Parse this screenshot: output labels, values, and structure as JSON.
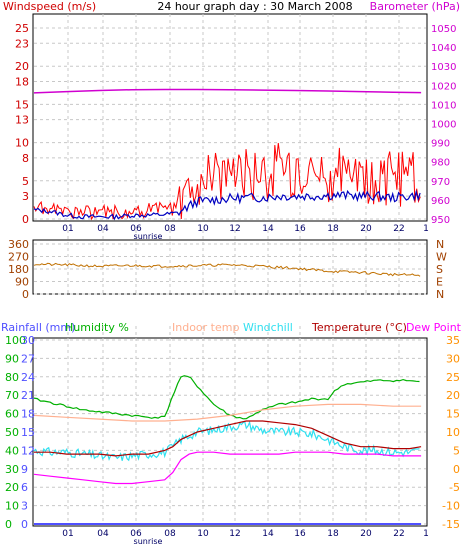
{
  "header": {
    "windspeed_label": "Windspeed (m/s)",
    "title": "24 hour graph day : 30 March 2008",
    "barometer_label": "Barometer (hPa)"
  },
  "mid": {
    "compass": [
      "N",
      "W",
      "S",
      "E",
      "N"
    ]
  },
  "legend": {
    "rainfall": "Rainfall (mm)",
    "humidity": "Humidity %",
    "indoor": "Indoor temp",
    "windchill": "Windchill",
    "temperature": "Temperature (°C)",
    "dewpoint": "Dew Point"
  },
  "colors": {
    "windspeed_axis": "#d00000",
    "windspeed": "#ff0000",
    "windavg": "#0000c0",
    "barometer": "#d000d0",
    "direction": "#c07000",
    "direction_axis": "#a04000",
    "rainfall": "#5050ff",
    "humidity": "#00b000",
    "indoor": "#ffb090",
    "windchill": "#30e0f0",
    "temperature": "#b00000",
    "dewpoint": "#ff00ff",
    "temp_axis": "#ff9000",
    "grid": "#c8c8c8"
  },
  "chart_data": [
    {
      "type": "line",
      "title": "24 hour graph day : 30 March 2008",
      "x_ticks": [
        "01",
        "04",
        "06",
        "08",
        "10",
        "12",
        "14",
        "16",
        "18",
        "20",
        "22",
        "1"
      ],
      "x_marker": "sunrise",
      "y_left": {
        "label": "Windspeed (m/s)",
        "ticks": [
          0,
          3,
          5,
          8,
          10,
          13,
          15,
          18,
          20,
          23,
          25
        ],
        "range": [
          0,
          25
        ]
      },
      "y_right": {
        "label": "Barometer (hPa)",
        "ticks": [
          950,
          960,
          970,
          980,
          990,
          1000,
          1010,
          1020,
          1030,
          1040,
          1050
        ],
        "range": [
          950,
          1050
        ]
      },
      "series": [
        {
          "name": "Windspeed (m/s)",
          "axis": "left",
          "x": [
            0,
            1,
            2,
            3,
            4,
            5,
            6,
            7,
            8,
            8.8,
            9,
            9.5,
            10,
            11,
            12,
            13,
            14,
            15,
            16,
            17,
            18,
            19,
            20,
            21,
            22,
            23,
            23.7
          ],
          "values": [
            1.5,
            1.2,
            0.8,
            0.6,
            0.6,
            0.7,
            0.8,
            0.9,
            1.0,
            1.3,
            2.5,
            3.5,
            4.5,
            4.6,
            5.2,
            5.0,
            5.0,
            5.5,
            5.5,
            5.0,
            5.0,
            5.2,
            5.0,
            4.5,
            4.5,
            4.3,
            4.3
          ]
        },
        {
          "name": "Wind average",
          "axis": "left",
          "x": [
            0,
            1,
            2,
            3,
            4,
            5,
            6,
            7,
            8,
            8.8,
            9.5,
            10,
            11,
            12,
            13,
            14,
            15,
            16,
            17,
            18,
            19,
            20,
            21,
            22,
            23,
            23.7
          ],
          "values": [
            1.2,
            1.0,
            0.5,
            0.3,
            0.3,
            0.3,
            0.5,
            0.5,
            0.6,
            0.8,
            1.7,
            2.3,
            2.5,
            2.7,
            2.8,
            2.8,
            3.0,
            3.0,
            3.0,
            3.1,
            3.1,
            3.0,
            3.0,
            2.8,
            3.0,
            3.2
          ]
        },
        {
          "name": "Barometer (hPa)",
          "axis": "right",
          "x": [
            0,
            2,
            4,
            6,
            8,
            10,
            12,
            14,
            16,
            18,
            20,
            22,
            23.7
          ],
          "values": [
            1016.0,
            1016.7,
            1017.3,
            1017.7,
            1017.8,
            1017.8,
            1017.7,
            1017.5,
            1017.3,
            1017.0,
            1016.7,
            1016.4,
            1016.2
          ]
        }
      ]
    },
    {
      "type": "line",
      "y_left": {
        "ticks": [
          0,
          90,
          180,
          270,
          360
        ],
        "range": [
          0,
          360
        ]
      },
      "y_right": {
        "ticks": [
          "N",
          "W",
          "S",
          "E",
          "N"
        ]
      },
      "series": [
        {
          "name": "Wind direction",
          "x": [
            0,
            2,
            4,
            6,
            8,
            10,
            12,
            14,
            16,
            18,
            20,
            22,
            23.7
          ],
          "values": [
            215,
            210,
            200,
            205,
            200,
            205,
            210,
            200,
            185,
            165,
            155,
            140,
            135
          ]
        }
      ]
    },
    {
      "type": "line",
      "legend": [
        "Rainfall (mm)",
        "Humidity %",
        "Indoor temp",
        "Windchill",
        "Temperature (°C)",
        "Dew Point"
      ],
      "y_rainfall": {
        "label": "Rainfall (mm)",
        "ticks": [
          0,
          3,
          6,
          9,
          12,
          15,
          18,
          21,
          24,
          27,
          30
        ],
        "range": [
          0,
          30
        ]
      },
      "y_humidity": {
        "label": "Humidity %",
        "ticks": [
          0,
          10,
          20,
          30,
          40,
          50,
          60,
          70,
          80,
          90,
          100
        ],
        "range": [
          0,
          100
        ]
      },
      "y_temperature": {
        "label": "Temperature (°C)",
        "ticks": [
          -15,
          -10,
          -5,
          0,
          5,
          10,
          15,
          20,
          25,
          30,
          35
        ],
        "range": [
          -15,
          35
        ]
      },
      "series": [
        {
          "name": "Humidity %",
          "axis": "humidity",
          "x": [
            0,
            1,
            2,
            3,
            4,
            5,
            6,
            7,
            8,
            8.5,
            9,
            9.5,
            10,
            10.5,
            11,
            12,
            13,
            13.5,
            14,
            15,
            16,
            17,
            18,
            18.5,
            19,
            20,
            21,
            22,
            23,
            23.7
          ],
          "values": [
            68,
            66,
            64,
            62,
            61,
            60,
            59,
            58,
            58,
            70,
            80,
            80,
            75,
            70,
            65,
            59,
            57,
            60,
            62,
            65,
            66,
            68,
            68,
            73,
            76,
            77,
            78,
            78,
            78,
            77
          ]
        },
        {
          "name": "Indoor temp",
          "axis": "temperature",
          "x": [
            0,
            2,
            4,
            6,
            8,
            10,
            12,
            14,
            16,
            18,
            20,
            22,
            23.7
          ],
          "values": [
            14.5,
            14.0,
            13.5,
            13.0,
            13.0,
            13.5,
            14.5,
            16.0,
            17.0,
            17.5,
            17.5,
            17.0,
            17.0
          ]
        },
        {
          "name": "Windchill",
          "axis": "temperature",
          "x": [
            0,
            1,
            2,
            3,
            4,
            5,
            6,
            7,
            8,
            8.5,
            9,
            9.5,
            10,
            11,
            12,
            13,
            14,
            15,
            16,
            17,
            18,
            19,
            20,
            21,
            22,
            23,
            23.7
          ],
          "values": [
            5.0,
            4.5,
            4.5,
            4.0,
            3.5,
            3.0,
            3.5,
            4.0,
            4.5,
            6.0,
            8.0,
            9.0,
            10.0,
            10.5,
            11.5,
            12.0,
            10.5,
            10.0,
            10.0,
            9.5,
            8.0,
            6.0,
            5.0,
            5.0,
            4.5,
            4.5,
            5.0
          ]
        },
        {
          "name": "Temperature (°C)",
          "axis": "temperature",
          "x": [
            0,
            1,
            2,
            3,
            4,
            5,
            6,
            7,
            8,
            8.5,
            9,
            9.5,
            10,
            11,
            12,
            13,
            14,
            15,
            16,
            17,
            18,
            19,
            20,
            21,
            22,
            23,
            23.7
          ],
          "values": [
            4.5,
            4.5,
            4.0,
            4.0,
            4.0,
            3.5,
            4.0,
            4.0,
            5.0,
            6.0,
            8.0,
            9.0,
            10.0,
            11.0,
            12.0,
            13.0,
            13.0,
            12.5,
            12.0,
            11.0,
            9.0,
            7.0,
            6.0,
            6.0,
            5.5,
            5.5,
            6.0
          ]
        },
        {
          "name": "Dew Point",
          "axis": "temperature",
          "x": [
            0,
            1,
            2,
            3,
            4,
            5,
            6,
            7,
            8,
            8.5,
            9,
            9.5,
            10,
            11,
            12,
            13,
            14,
            15,
            16,
            17,
            18,
            19,
            20,
            21,
            22,
            23,
            23.7
          ],
          "values": [
            -1.5,
            -2.0,
            -2.5,
            -3.0,
            -3.5,
            -4.0,
            -4.0,
            -3.5,
            -3.0,
            -1.0,
            2.5,
            4.0,
            4.5,
            4.5,
            4.0,
            4.0,
            4.0,
            4.0,
            4.5,
            4.5,
            4.5,
            4.0,
            4.0,
            4.0,
            3.5,
            3.5,
            3.5
          ]
        },
        {
          "name": "Rainfall (mm)",
          "axis": "rainfall",
          "x": [
            0,
            23.7
          ],
          "values": [
            0,
            0
          ]
        }
      ]
    }
  ]
}
